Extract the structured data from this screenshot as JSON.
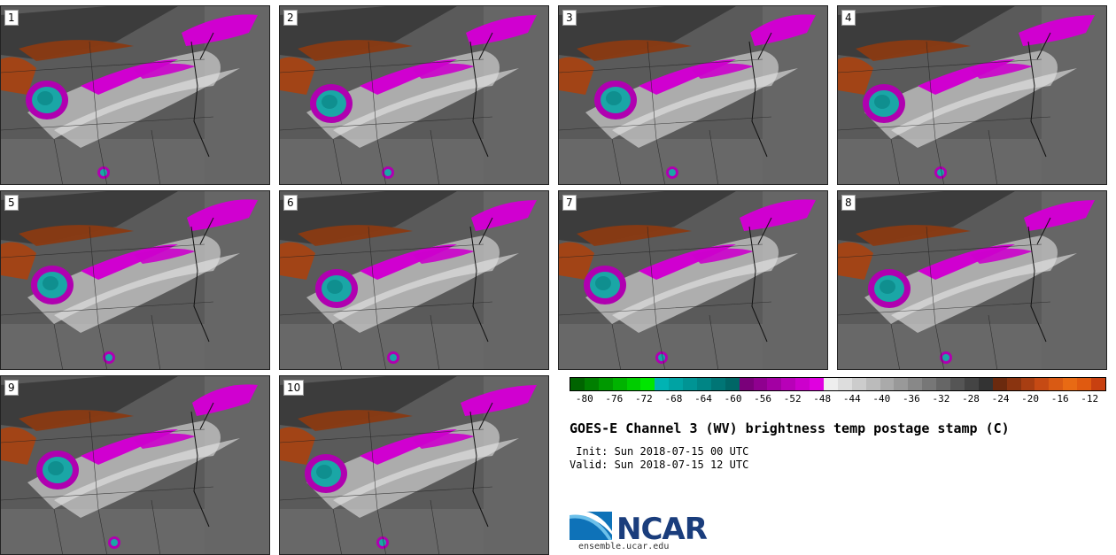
{
  "panels": [
    {
      "label": "1"
    },
    {
      "label": "2"
    },
    {
      "label": "3"
    },
    {
      "label": "4"
    },
    {
      "label": "5"
    },
    {
      "label": "6"
    },
    {
      "label": "7"
    },
    {
      "label": "8"
    },
    {
      "label": "9"
    },
    {
      "label": "10"
    }
  ],
  "colorbar": {
    "colors": [
      "#006400",
      "#007f00",
      "#009900",
      "#00b300",
      "#00cc00",
      "#00e600",
      "#00b3b3",
      "#00a3a3",
      "#009494",
      "#008585",
      "#007575",
      "#006666",
      "#7a007a",
      "#8f008f",
      "#a300a3",
      "#b800b8",
      "#cc00cc",
      "#e000e0",
      "#eeeeee",
      "#dddddd",
      "#cccccc",
      "#bbbbbb",
      "#aaaaaa",
      "#999999",
      "#888888",
      "#777777",
      "#666666",
      "#555555",
      "#444444",
      "#333333",
      "#6b2a0e",
      "#8a3410",
      "#a83e12",
      "#c64a14",
      "#d95a14",
      "#e86a14",
      "#e05a10",
      "#c84010"
    ],
    "ticks": [
      "-80",
      "-76",
      "-72",
      "-68",
      "-64",
      "-60",
      "-56",
      "-52",
      "-48",
      "-44",
      "-40",
      "-36",
      "-32",
      "-28",
      "-24",
      "-20",
      "-16",
      "-12"
    ],
    "min": -82,
    "max": -10
  },
  "title": "GOES-E Channel 3 (WV) brightness temp postage stamp (C)",
  "init": " Init: Sun 2018-07-15 00 UTC",
  "valid": "Valid: Sun 2018-07-15 12 UTC",
  "logo": {
    "name": "NCAR",
    "url": "ensemble.ucar.edu"
  }
}
